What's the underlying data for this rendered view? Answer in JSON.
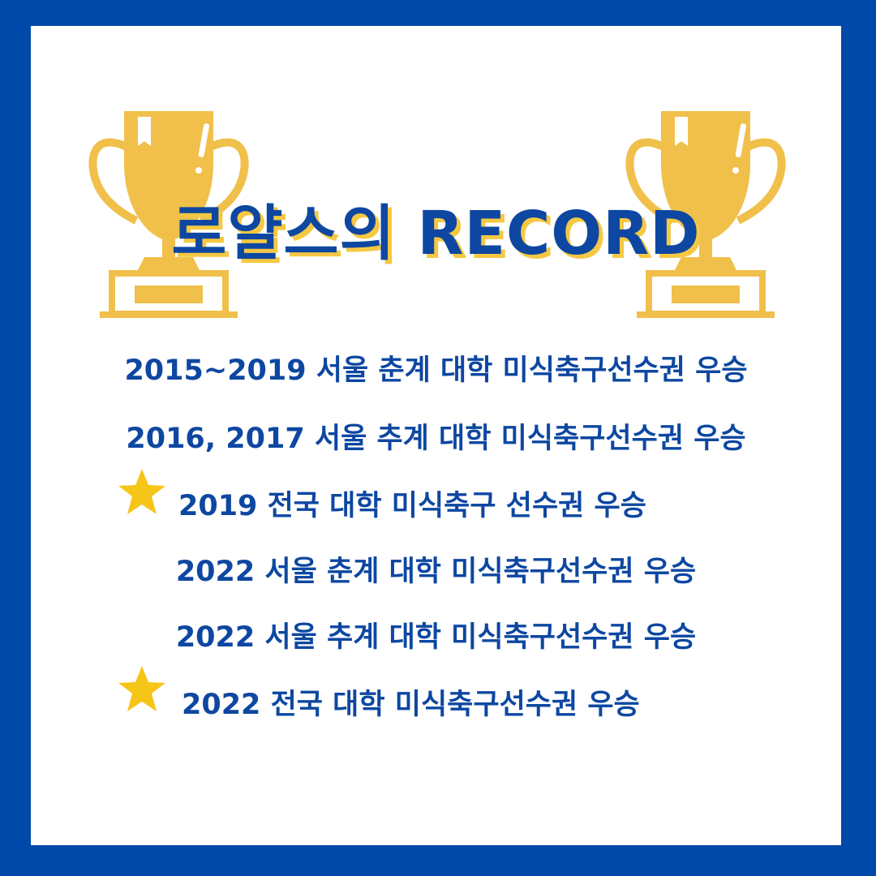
{
  "title": "로얄스의 RECORD",
  "colors": {
    "border": "#0049a8",
    "text": "#0d47a1",
    "gold": "#f0c04b",
    "star": "#f5c518"
  },
  "icons": [
    "trophy-icon",
    "star-icon"
  ],
  "records": [
    {
      "text": "2015~2019 서울 춘계 대학 미식축구선수권 우승",
      "starred": false
    },
    {
      "text": "2016, 2017 서울 추계 대학 미식축구선수권 우승",
      "starred": false
    },
    {
      "text": "2019 전국 대학 미식축구 선수권 우승",
      "starred": true
    },
    {
      "text": "2022 서울 춘계 대학 미식축구선수권 우승",
      "starred": false
    },
    {
      "text": "2022 서울 추계 대학 미식축구선수권 우승",
      "starred": false
    },
    {
      "text": "2022 전국 대학 미식축구선수권 우승",
      "starred": true
    }
  ]
}
